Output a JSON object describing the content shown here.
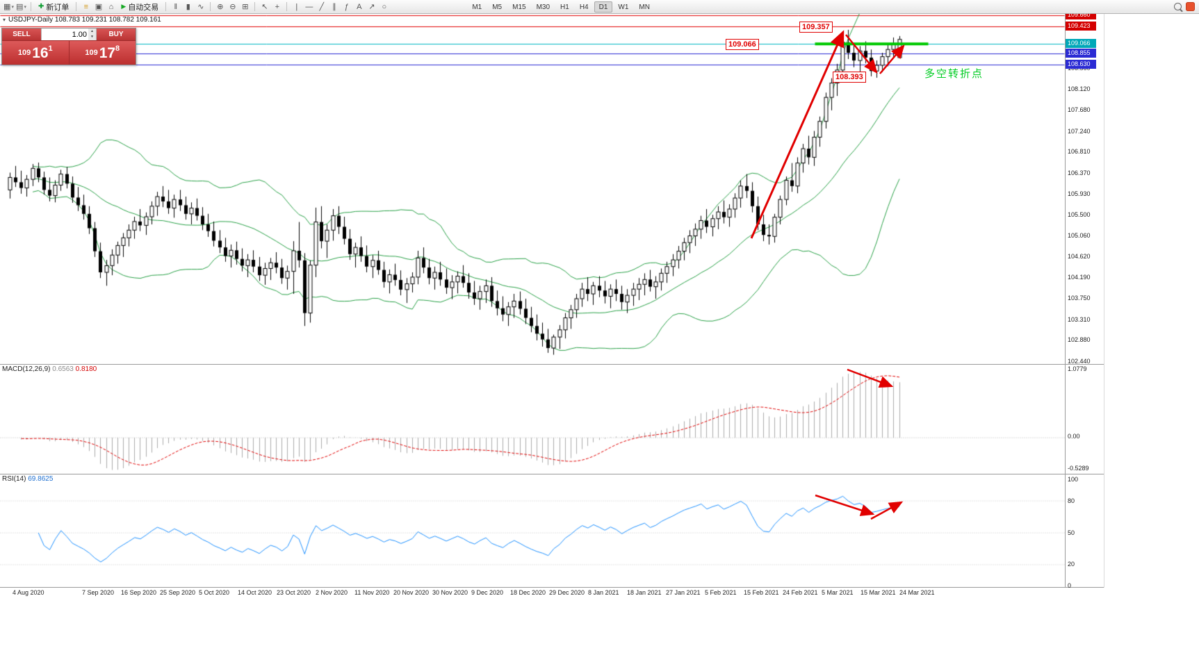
{
  "app": {
    "toolbar": {
      "new_order": "新订单",
      "auto_trading": "自动交易",
      "timeframes": [
        "M1",
        "M5",
        "M15",
        "M30",
        "H1",
        "H4",
        "D1",
        "W1",
        "MN"
      ],
      "active_timeframe": "D1",
      "icons": {
        "new_chart": "▦",
        "profiles": "▤",
        "market_watch": "≡",
        "data_window": "▣",
        "navigator": "⌂",
        "plus": "✚",
        "play": "▶",
        "bars": "‖",
        "candles": "▮",
        "line_chart": "∿",
        "zoom_in": "⊕",
        "zoom_out": "⊖",
        "tile": "⊞",
        "cursor": "↖",
        "crosshair": "+",
        "vline": "|",
        "hline": "—",
        "trendline": "╱",
        "channel": "∥",
        "fibonacci": "ƒ",
        "text_tool": "A",
        "arrow_tool": "↗",
        "shapes": "○",
        "caret": "▾"
      }
    },
    "readout": "USDJPY-Daily  108.783 109.231 108.782 109.161",
    "one_click": {
      "sell_label": "SELL",
      "buy_label": "BUY",
      "volume": "1.00",
      "sell_price": {
        "base": "109",
        "pips": "16",
        "pt": "1"
      },
      "buy_price": {
        "base": "109",
        "pips": "17",
        "pt": "8"
      }
    },
    "annotations": {
      "high": "109.357",
      "level": "109.066",
      "low": "108.393",
      "note": "多空转折点"
    },
    "price_scale": {
      "badges": [
        {
          "text": "109.660",
          "price": 109.66,
          "color": "#d40000"
        },
        {
          "text": "109.423",
          "price": 109.423,
          "color": "#d40000"
        },
        {
          "text": "109.066",
          "price": 109.066,
          "color": "#00a8b8"
        },
        {
          "text": "108.855",
          "price": 108.855,
          "color": "#2b2bd4"
        },
        {
          "text": "108.630",
          "price": 108.63,
          "color": "#2b2bd4"
        }
      ],
      "labels": [
        "108.560",
        "108.120",
        "107.680",
        "107.240",
        "106.810",
        "106.370",
        "105.930",
        "105.500",
        "105.060",
        "104.620",
        "104.190",
        "103.750",
        "103.310",
        "102.880",
        "102.440"
      ]
    },
    "time_labels": [
      "4 Aug 2020",
      "7 Sep 2020",
      "16 Sep 2020",
      "25 Sep 2020",
      "5 Oct 2020",
      "14 Oct 2020",
      "23 Oct 2020",
      "2 Nov 2020",
      "11 Nov 2020",
      "20 Nov 2020",
      "30 Nov 2020",
      "9 Dec 2020",
      "18 Dec 2020",
      "29 Dec 2020",
      "8 Jan 2021",
      "18 Jan 2021",
      "27 Jan 2021",
      "5 Feb 2021",
      "15 Feb 2021",
      "24 Feb 2021",
      "5 Mar 2021",
      "15 Mar 2021",
      "24 Mar 2021"
    ],
    "macd_panel": {
      "title": "MACD(12,26,9)",
      "main_value": "0.6563",
      "signal_value": "0.8180",
      "axis": [
        "1.0779",
        "0.00",
        "-0.5289"
      ]
    },
    "rsi_panel": {
      "title": "RSI(14)",
      "value": "69.8625",
      "axis": [
        "100",
        "80",
        "50",
        "20",
        "0"
      ]
    }
  },
  "chart_data": {
    "type": "candlestick",
    "symbol": "USDJPY",
    "timeframe": "Daily",
    "current_bar": {
      "open": 108.783,
      "high": 109.231,
      "low": 108.782,
      "close": 109.161
    },
    "y_axis_range": [
      102.38,
      109.69
    ],
    "horizontal_lines": [
      {
        "price": 109.66,
        "color": "#e00000"
      },
      {
        "price": 109.423,
        "color": "#e00000"
      },
      {
        "price": 109.066,
        "color": "#00b7c3"
      },
      {
        "price": 108.855,
        "color": "#2b2bd4"
      },
      {
        "price": 108.63,
        "color": "#2b2bd4"
      }
    ],
    "drawn_levels": {
      "resistance": [
        109.66,
        109.423
      ],
      "pivot": 109.066,
      "support": [
        108.855,
        108.63
      ]
    },
    "indicators": {
      "bollinger_bands": {
        "period": 20,
        "deviations": 2,
        "color": "#28a046"
      },
      "macd": {
        "fast_ema": 12,
        "slow_ema": 26,
        "signal_sma": 9,
        "current_main": 0.6563,
        "current_signal": 0.818
      },
      "rsi": {
        "period": 14,
        "current": 69.8625,
        "levels": [
          80,
          50,
          20
        ]
      }
    },
    "candles": [
      [
        106.02,
        106.38,
        105.84,
        106.28
      ],
      [
        106.28,
        106.52,
        106.08,
        106.18
      ],
      [
        106.18,
        106.42,
        105.94,
        106.06
      ],
      [
        106.06,
        106.33,
        105.88,
        106.24
      ],
      [
        106.24,
        106.56,
        106.1,
        106.47
      ],
      [
        106.47,
        106.59,
        106.18,
        106.28
      ],
      [
        106.28,
        106.4,
        105.92,
        106.02
      ],
      [
        106.02,
        106.28,
        105.78,
        105.9
      ],
      [
        105.9,
        106.22,
        105.76,
        106.12
      ],
      [
        106.12,
        106.44,
        106.0,
        106.35
      ],
      [
        106.35,
        106.5,
        106.05,
        106.15
      ],
      [
        106.15,
        106.3,
        105.75,
        105.86
      ],
      [
        105.86,
        106.08,
        105.58,
        105.7
      ],
      [
        105.7,
        105.92,
        105.4,
        105.52
      ],
      [
        105.52,
        105.68,
        105.1,
        105.22
      ],
      [
        105.22,
        105.35,
        104.62,
        104.74
      ],
      [
        104.74,
        104.92,
        104.18,
        104.3
      ],
      [
        104.3,
        104.56,
        104.02,
        104.44
      ],
      [
        104.44,
        104.78,
        104.24,
        104.66
      ],
      [
        104.66,
        104.94,
        104.48,
        104.86
      ],
      [
        104.86,
        105.12,
        104.62,
        105.02
      ],
      [
        105.02,
        105.3,
        104.84,
        105.18
      ],
      [
        105.18,
        105.46,
        105.0,
        105.36
      ],
      [
        105.36,
        105.62,
        105.16,
        105.28
      ],
      [
        105.28,
        105.55,
        105.08,
        105.46
      ],
      [
        105.46,
        105.78,
        105.3,
        105.68
      ],
      [
        105.68,
        105.98,
        105.48,
        105.88
      ],
      [
        105.88,
        106.1,
        105.66,
        105.78
      ],
      [
        105.78,
        106.02,
        105.52,
        105.64
      ],
      [
        105.64,
        105.92,
        105.44,
        105.82
      ],
      [
        105.82,
        106.02,
        105.58,
        105.7
      ],
      [
        105.7,
        105.88,
        105.4,
        105.52
      ],
      [
        105.52,
        105.76,
        105.3,
        105.64
      ],
      [
        105.64,
        105.84,
        105.38,
        105.48
      ],
      [
        105.48,
        105.66,
        105.18,
        105.3
      ],
      [
        105.3,
        105.52,
        105.04,
        105.16
      ],
      [
        105.16,
        105.36,
        104.84,
        104.96
      ],
      [
        104.96,
        105.18,
        104.7,
        104.82
      ],
      [
        104.82,
        105.02,
        104.52,
        104.64
      ],
      [
        104.64,
        104.88,
        104.4,
        104.76
      ],
      [
        104.76,
        104.94,
        104.46,
        104.58
      ],
      [
        104.58,
        104.8,
        104.32,
        104.44
      ],
      [
        104.44,
        104.68,
        104.2,
        104.56
      ],
      [
        104.56,
        104.76,
        104.3,
        104.42
      ],
      [
        104.42,
        104.62,
        104.12,
        104.24
      ],
      [
        104.24,
        104.5,
        104.04,
        104.38
      ],
      [
        104.38,
        104.6,
        104.14,
        104.5
      ],
      [
        104.5,
        104.72,
        104.28,
        104.4
      ],
      [
        104.4,
        104.58,
        104.06,
        104.18
      ],
      [
        104.18,
        104.44,
        103.94,
        104.32
      ],
      [
        104.32,
        104.95,
        103.85,
        104.75
      ],
      [
        104.75,
        105.35,
        104.4,
        104.55
      ],
      [
        104.55,
        104.7,
        103.18,
        103.45
      ],
      [
        103.45,
        104.55,
        103.25,
        104.45
      ],
      [
        104.45,
        105.65,
        104.2,
        105.35
      ],
      [
        105.35,
        105.68,
        104.8,
        104.95
      ],
      [
        104.95,
        105.3,
        104.6,
        105.18
      ],
      [
        105.18,
        105.62,
        104.96,
        105.48
      ],
      [
        105.48,
        105.68,
        105.1,
        105.25
      ],
      [
        105.25,
        105.46,
        104.88,
        105.0
      ],
      [
        105.0,
        105.2,
        104.56,
        104.68
      ],
      [
        104.68,
        104.92,
        104.4,
        104.82
      ],
      [
        104.82,
        105.05,
        104.52,
        104.64
      ],
      [
        104.64,
        104.86,
        104.3,
        104.42
      ],
      [
        104.42,
        104.66,
        104.18,
        104.55
      ],
      [
        104.55,
        104.75,
        104.25,
        104.35
      ],
      [
        104.35,
        104.52,
        103.98,
        104.1
      ],
      [
        104.1,
        104.36,
        103.86,
        104.25
      ],
      [
        104.25,
        104.48,
        104.02,
        104.14
      ],
      [
        104.14,
        104.34,
        103.82,
        103.94
      ],
      [
        103.94,
        104.18,
        103.66,
        104.06
      ],
      [
        104.06,
        104.3,
        103.88,
        104.2
      ],
      [
        104.2,
        104.75,
        104.05,
        104.6
      ],
      [
        104.6,
        104.82,
        104.28,
        104.4
      ],
      [
        104.4,
        104.58,
        104.05,
        104.18
      ],
      [
        104.18,
        104.42,
        103.94,
        104.3
      ],
      [
        104.3,
        104.52,
        104.02,
        104.15
      ],
      [
        104.15,
        104.38,
        103.85,
        103.98
      ],
      [
        103.98,
        104.24,
        103.74,
        104.1
      ],
      [
        104.1,
        104.32,
        103.86,
        104.22
      ],
      [
        104.22,
        104.45,
        103.98,
        104.08
      ],
      [
        104.08,
        104.28,
        103.75,
        103.88
      ],
      [
        103.88,
        104.12,
        103.62,
        103.75
      ],
      [
        103.75,
        104.02,
        103.52,
        103.9
      ],
      [
        103.9,
        104.15,
        103.66,
        104.02
      ],
      [
        104.02,
        104.2,
        103.58,
        103.7
      ],
      [
        103.7,
        103.92,
        103.4,
        103.55
      ],
      [
        103.55,
        103.8,
        103.28,
        103.42
      ],
      [
        103.42,
        103.68,
        103.18,
        103.58
      ],
      [
        103.58,
        103.85,
        103.35,
        103.7
      ],
      [
        103.7,
        103.9,
        103.42,
        103.54
      ],
      [
        103.54,
        103.75,
        103.22,
        103.35
      ],
      [
        103.35,
        103.58,
        103.05,
        103.18
      ],
      [
        103.18,
        103.42,
        102.88,
        103.02
      ],
      [
        103.02,
        103.25,
        102.75,
        102.9
      ],
      [
        102.9,
        103.12,
        102.62,
        102.72
      ],
      [
        102.72,
        103.0,
        102.58,
        102.95
      ],
      [
        102.95,
        103.2,
        102.7,
        103.1
      ],
      [
        103.1,
        103.45,
        102.92,
        103.35
      ],
      [
        103.35,
        103.62,
        103.12,
        103.52
      ],
      [
        103.52,
        103.85,
        103.35,
        103.75
      ],
      [
        103.75,
        104.08,
        103.58,
        103.95
      ],
      [
        103.95,
        104.2,
        103.7,
        103.85
      ],
      [
        103.85,
        104.1,
        103.62,
        104.02
      ],
      [
        104.02,
        104.22,
        103.78,
        103.92
      ],
      [
        103.92,
        104.12,
        103.65,
        103.8
      ],
      [
        103.8,
        104.05,
        103.55,
        103.95
      ],
      [
        103.95,
        104.15,
        103.7,
        103.85
      ],
      [
        103.85,
        104.02,
        103.52,
        103.68
      ],
      [
        103.68,
        103.95,
        103.45,
        103.82
      ],
      [
        103.82,
        104.08,
        103.6,
        103.95
      ],
      [
        103.95,
        104.18,
        103.72,
        104.05
      ],
      [
        104.05,
        104.28,
        103.82,
        104.15
      ],
      [
        104.15,
        104.35,
        103.9,
        104.0
      ],
      [
        104.0,
        104.22,
        103.75,
        104.1
      ],
      [
        104.1,
        104.38,
        103.92,
        104.28
      ],
      [
        104.28,
        104.52,
        104.08,
        104.42
      ],
      [
        104.42,
        104.68,
        104.22,
        104.56
      ],
      [
        104.56,
        104.85,
        104.38,
        104.74
      ],
      [
        104.74,
        105.02,
        104.55,
        104.92
      ],
      [
        104.92,
        105.18,
        104.7,
        105.06
      ],
      [
        105.06,
        105.32,
        104.85,
        105.2
      ],
      [
        105.2,
        105.48,
        105.0,
        105.38
      ],
      [
        105.38,
        105.62,
        105.12,
        105.25
      ],
      [
        105.25,
        105.5,
        105.05,
        105.42
      ],
      [
        105.42,
        105.68,
        105.2,
        105.56
      ],
      [
        105.56,
        105.8,
        105.32,
        105.45
      ],
      [
        105.45,
        105.72,
        105.25,
        105.62
      ],
      [
        105.62,
        105.95,
        105.44,
        105.85
      ],
      [
        105.85,
        106.22,
        105.65,
        106.1
      ],
      [
        106.1,
        106.35,
        105.85,
        106.0
      ],
      [
        106.0,
        106.18,
        105.55,
        105.68
      ],
      [
        105.68,
        105.88,
        105.18,
        105.3
      ],
      [
        105.3,
        105.5,
        104.95,
        105.08
      ],
      [
        105.08,
        105.3,
        104.88,
        105.05
      ],
      [
        105.05,
        105.52,
        104.92,
        105.45
      ],
      [
        105.45,
        105.9,
        105.3,
        105.82
      ],
      [
        105.82,
        106.3,
        105.7,
        106.22
      ],
      [
        106.22,
        106.58,
        105.98,
        106.1
      ],
      [
        106.1,
        106.7,
        105.95,
        106.58
      ],
      [
        106.58,
        106.98,
        106.38,
        106.88
      ],
      [
        106.88,
        107.15,
        106.55,
        106.7
      ],
      [
        106.7,
        107.25,
        106.52,
        107.12
      ],
      [
        107.12,
        107.55,
        106.92,
        107.45
      ],
      [
        107.45,
        108.05,
        107.3,
        107.95
      ],
      [
        107.95,
        108.35,
        107.68,
        108.25
      ],
      [
        108.25,
        108.65,
        107.98,
        108.52
      ],
      [
        108.52,
        109.23,
        108.35,
        109.1
      ],
      [
        109.1,
        109.36,
        108.75,
        108.88
      ],
      [
        108.88,
        109.08,
        108.58,
        108.72
      ],
      [
        108.72,
        109.02,
        108.4,
        108.92
      ],
      [
        108.92,
        109.12,
        108.66,
        108.78
      ],
      [
        108.78,
        108.95,
        108.39,
        108.5
      ],
      [
        108.5,
        108.72,
        108.36,
        108.62
      ],
      [
        108.62,
        108.88,
        108.48,
        108.8
      ],
      [
        108.8,
        109.05,
        108.6,
        108.95
      ],
      [
        108.95,
        109.2,
        108.77,
        109.05
      ],
      [
        108.78,
        109.23,
        108.78,
        109.16
      ]
    ]
  }
}
